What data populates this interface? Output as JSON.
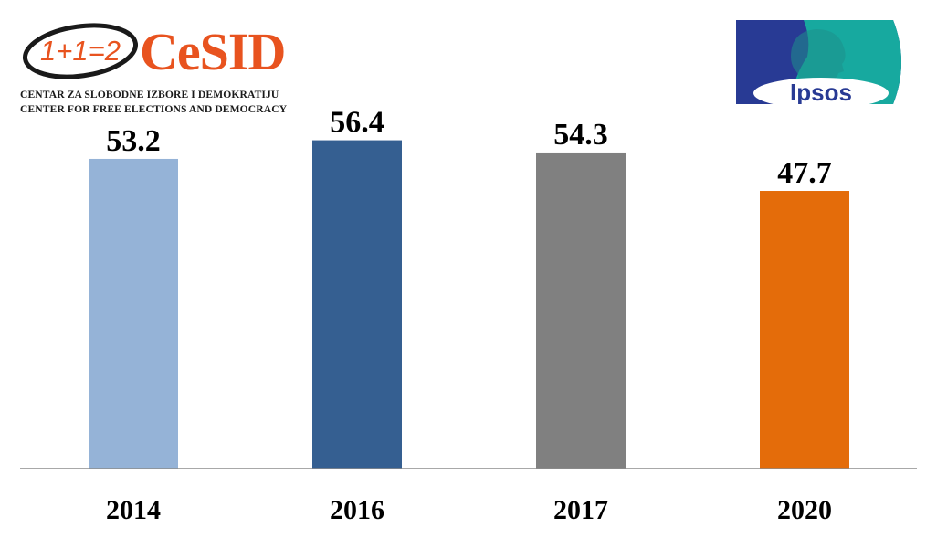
{
  "logos": {
    "cesid": {
      "equation": "1+1=2",
      "name": "CeSID",
      "line1": "CENTAR ZA SLOBODNE IZBORE I DEMOKRATIJU",
      "line2": "CENTER FOR FREE ELECTIONS AND DEMOCRACY",
      "colors": {
        "accent": "#e8531f"
      }
    },
    "ipsos": {
      "name": "Ipsos",
      "colors": {
        "blue": "#283a94",
        "teal": "#17a99f"
      }
    }
  },
  "chart_data": {
    "type": "bar",
    "categories": [
      "2014",
      "2016",
      "2017",
      "2020"
    ],
    "values": [
      53.2,
      56.4,
      54.3,
      47.7
    ],
    "value_labels": [
      "53.2",
      "56.4",
      "54.3",
      "47.7"
    ],
    "colors": [
      "#95b3d7",
      "#355f91",
      "#808080",
      "#e46c0a"
    ],
    "title": "",
    "xlabel": "",
    "ylabel": "",
    "ylim": [
      0,
      59
    ],
    "grid": false,
    "legend": "none"
  }
}
